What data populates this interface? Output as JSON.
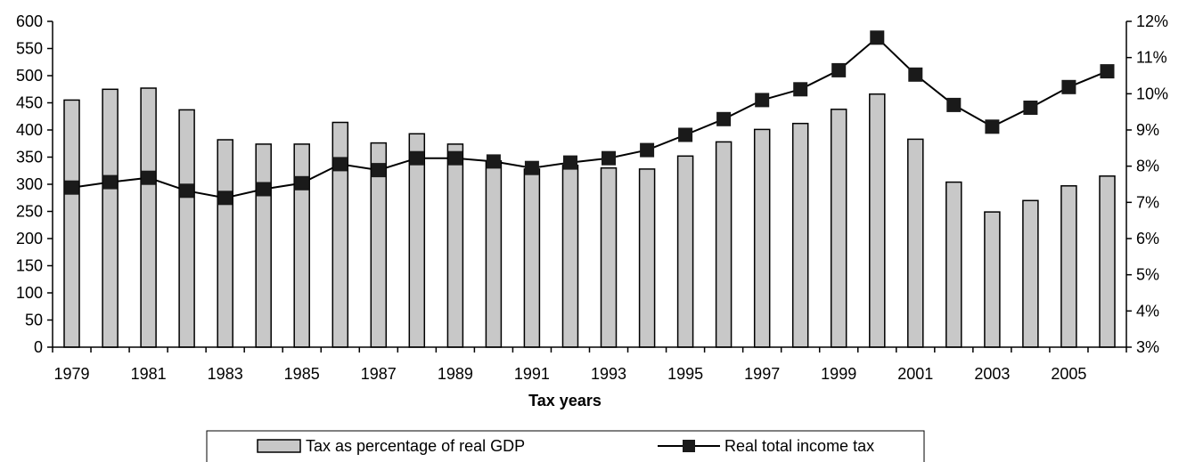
{
  "chart_data": {
    "type": "bar+line",
    "xlabel": "Tax years",
    "categories": [
      "1979",
      "1980",
      "1981",
      "1982",
      "1983",
      "1984",
      "1985",
      "1986",
      "1987",
      "1988",
      "1989",
      "1990",
      "1991",
      "1992",
      "1993",
      "1994",
      "1995",
      "1996",
      "1997",
      "1998",
      "1999",
      "2000",
      "2001",
      "2002",
      "2003",
      "2004",
      "2005",
      "2006"
    ],
    "x_tick_labels": [
      "1979",
      "1981",
      "1983",
      "1985",
      "1987",
      "1989",
      "1991",
      "1993",
      "1995",
      "1997",
      "1999",
      "2001",
      "2003",
      "2005"
    ],
    "left_axis": {
      "range": [
        0,
        600
      ],
      "ticks": [
        "0",
        "50",
        "100",
        "150",
        "200",
        "250",
        "300",
        "350",
        "400",
        "450",
        "500",
        "550",
        "600"
      ]
    },
    "right_axis": {
      "range": [
        3,
        12
      ],
      "ticks": [
        "3%",
        "4%",
        "5%",
        "6%",
        "7%",
        "8%",
        "9%",
        "10%",
        "11%",
        "12%"
      ]
    },
    "series": [
      {
        "name": "Tax as percentage of real GDP",
        "kind": "bar",
        "axis": "left",
        "color": "#c8c8c8",
        "values": [
          455,
          475,
          477,
          437,
          382,
          374,
          374,
          414,
          376,
          393,
          374,
          343,
          328,
          335,
          330,
          328,
          352,
          378,
          401,
          412,
          438,
          466,
          383,
          304,
          249,
          270,
          297,
          315
        ]
      },
      {
        "name": "Real total income tax",
        "kind": "line",
        "axis": "left",
        "color": "#000000",
        "values": [
          294,
          304,
          312,
          288,
          275,
          291,
          302,
          337,
          326,
          348,
          348,
          342,
          330,
          340,
          348,
          363,
          391,
          420,
          455,
          475,
          510,
          570,
          502,
          446,
          406,
          441,
          479,
          508
        ]
      }
    ],
    "legend": {
      "position": "bottom-center",
      "entries": [
        "Tax as percentage of real GDP",
        "Real total income tax"
      ]
    },
    "grid": false
  }
}
